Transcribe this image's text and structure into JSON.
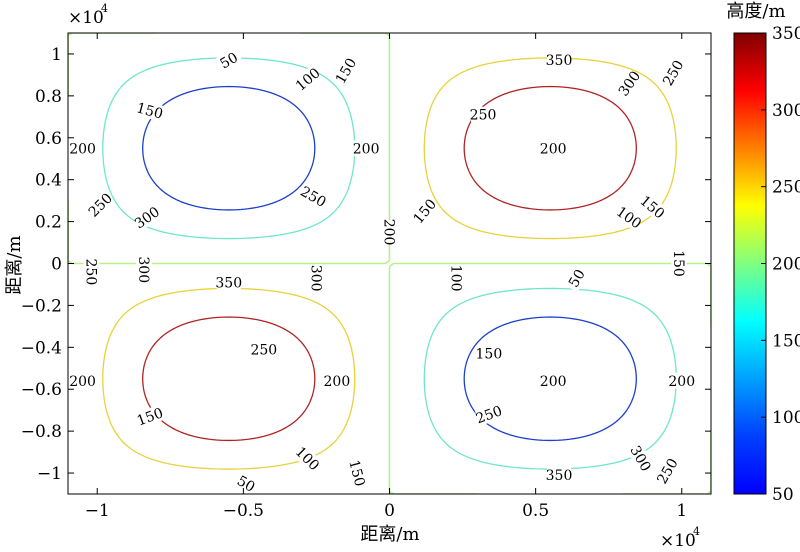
{
  "chart_data": {
    "type": "contour",
    "xlabel": "距离/m",
    "ylabel": "距离/m",
    "x_exponent_label": "×10",
    "x_exponent_power": "4",
    "y_exponent_label": "×10",
    "y_exponent_power": "4",
    "xlim": [
      -1.1,
      1.1
    ],
    "ylim": [
      -1.1,
      1.1
    ],
    "x_scale": 10000,
    "x_ticks": [
      -1,
      -0.5,
      0,
      0.5,
      1
    ],
    "x_tick_labels": [
      "−1",
      "−0.5",
      "0",
      "0.5",
      "1"
    ],
    "y_ticks": [
      1,
      0.8,
      0.6,
      0.4,
      0.2,
      0,
      -0.2,
      -0.4,
      -0.6,
      -0.8,
      -1
    ],
    "y_tick_labels": [
      "1",
      "0.8",
      "0.6",
      "0.4",
      "0.2",
      "0",
      "−0.2",
      "−0.4",
      "−0.6",
      "−0.8",
      "−1"
    ],
    "surface": {
      "formula": "h = 200 + 150 * sin(pi*x/1.1) * sin(pi*y/1.1), x and y in units of 10^4 m",
      "base": 200,
      "amplitude": 150,
      "period_half": 1.1
    },
    "levels": [
      50,
      100,
      150,
      200,
      250,
      300,
      350
    ],
    "level_colors": {
      "50": "#000000",
      "100": "#1a3fcc",
      "150": "#6ee6c8",
      "200": "#b8f08a",
      "250": "#e8d23a",
      "300": "#b22222",
      "350": "#1a0000"
    },
    "contour_labels": [
      "50",
      "100",
      "150",
      "200",
      "250",
      "300",
      "350"
    ],
    "colorbar": {
      "title": "高度/m",
      "min": 50,
      "max": 350,
      "ticks": [
        "350",
        "300",
        "250",
        "200",
        "150",
        "100",
        "50"
      ],
      "colormap": "jet"
    },
    "grid": false
  }
}
